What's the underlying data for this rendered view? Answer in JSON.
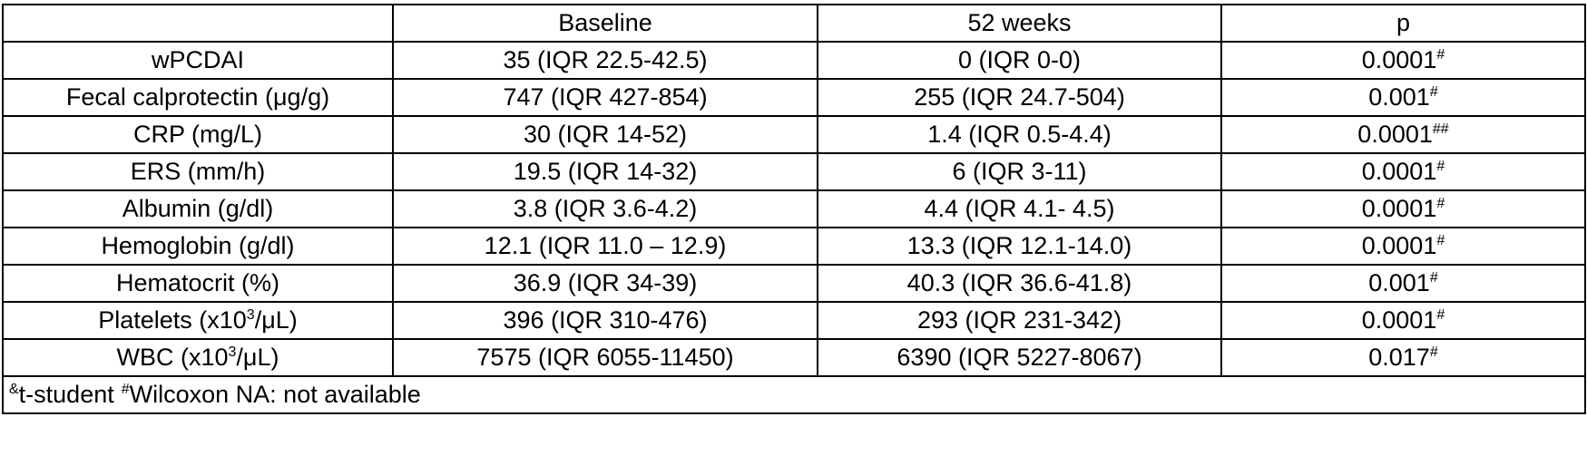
{
  "table": {
    "header": [
      "Baseline",
      "52 weeks",
      "p"
    ],
    "rows": [
      {
        "label": "wPCDAI",
        "baseline": "35 (IQR 22.5-42.5)",
        "week52": "0 (IQR 0-0)",
        "p": "0.0001",
        "p_sup": "#"
      },
      {
        "label": "Fecal calprotectin (μg/g)",
        "baseline": "747 (IQR 427-854)",
        "week52": "255 (IQR 24.7-504)",
        "p": "0.001",
        "p_sup": "#"
      },
      {
        "label": "CRP (mg/L)",
        "baseline": "30 (IQR 14-52)",
        "week52": "1.4 (IQR 0.5-4.4)",
        "p": "0.0001",
        "p_sup": "##"
      },
      {
        "label": "ERS (mm/h)",
        "baseline": "19.5 (IQR 14-32)",
        "week52": "6 (IQR 3-11)",
        "p": "0.0001",
        "p_sup": "#"
      },
      {
        "label": "Albumin (g/dl)",
        "baseline": "3.8 (IQR 3.6-4.2)",
        "week52": "4.4 (IQR 4.1- 4.5)",
        "p": "0.0001",
        "p_sup": "#"
      },
      {
        "label": "Hemoglobin (g/dl)",
        "baseline": "12.1 (IQR 11.0 – 12.9)",
        "week52": "13.3 (IQR 12.1-14.0)",
        "p": "0.0001",
        "p_sup": "#"
      },
      {
        "label": "Hematocrit (%)",
        "baseline": "36.9 (IQR 34-39)",
        "week52": "40.3 (IQR 36.6-41.8)",
        "p": "0.001",
        "p_sup": "#"
      },
      {
        "label": "Platelets (x10",
        "label_sup": "3",
        "label_after": "/μL)",
        "baseline": "396 (IQR 310-476)",
        "week52": "293 (IQR 231-342)",
        "p": "0.0001",
        "p_sup": "#"
      },
      {
        "label": "WBC (x10",
        "label_sup": "3",
        "label_after": "/μL)",
        "baseline": "7575 (IQR 6055-11450)",
        "week52": "6390 (IQR 5227-8067)",
        "p": "0.017",
        "p_sup": "#"
      }
    ],
    "footnote": [
      {
        "sup": "&",
        "text": "t-student"
      },
      {
        "sup": "#",
        "text": "Wilcoxon NA: not available"
      }
    ]
  }
}
